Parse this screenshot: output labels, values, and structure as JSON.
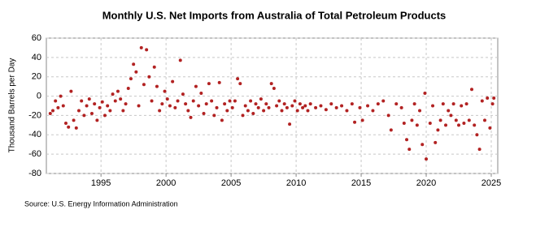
{
  "chart_data": {
    "type": "scatter",
    "title": "Monthly U.S. Net Imports from Australia of Total Petroleum Products",
    "y_label": "Thousand Barrels per Day",
    "source": "Source: U.S. Energy Information Administration",
    "color": "#b22222",
    "grid": true,
    "xlim": [
      1990.8,
      2025.5
    ],
    "xticks": [
      1995,
      2000,
      2005,
      2010,
      2015,
      2020,
      2025
    ],
    "ylim": [
      -80,
      60
    ],
    "yticks": [
      -80,
      -60,
      -40,
      -20,
      0,
      20,
      40,
      60
    ],
    "x": [
      1991.1,
      1991.3,
      1991.5,
      1991.7,
      1991.9,
      1992.1,
      1992.3,
      1992.5,
      1992.7,
      1992.9,
      1993.1,
      1993.3,
      1993.5,
      1993.7,
      1993.9,
      1994.1,
      1994.3,
      1994.5,
      1994.7,
      1994.9,
      1995.1,
      1995.3,
      1995.5,
      1995.7,
      1995.9,
      1996.1,
      1996.3,
      1996.5,
      1996.7,
      1996.9,
      1997.1,
      1997.3,
      1997.5,
      1997.7,
      1997.9,
      1998.1,
      1998.3,
      1998.5,
      1998.7,
      1998.9,
      1999.1,
      1999.3,
      1999.5,
      1999.7,
      1999.9,
      2000.1,
      2000.3,
      2000.5,
      2000.7,
      2000.9,
      2001.1,
      2001.3,
      2001.5,
      2001.7,
      2001.9,
      2002.1,
      2002.3,
      2002.5,
      2002.7,
      2002.9,
      2003.1,
      2003.3,
      2003.5,
      2003.7,
      2003.9,
      2004.1,
      2004.3,
      2004.5,
      2004.7,
      2004.9,
      2005.1,
      2005.3,
      2005.5,
      2005.7,
      2005.9,
      2006.1,
      2006.3,
      2006.5,
      2006.7,
      2006.9,
      2007.1,
      2007.3,
      2007.5,
      2007.7,
      2007.9,
      2008.1,
      2008.3,
      2008.5,
      2008.7,
      2008.9,
      2009.1,
      2009.3,
      2009.5,
      2009.7,
      2009.9,
      2010.1,
      2010.3,
      2010.5,
      2010.7,
      2010.9,
      2011.1,
      2011.5,
      2011.9,
      2012.3,
      2012.7,
      2013.1,
      2013.5,
      2013.9,
      2014.3,
      2014.5,
      2014.9,
      2015.1,
      2015.5,
      2015.9,
      2016.3,
      2016.7,
      2017.1,
      2017.3,
      2017.7,
      2018.1,
      2018.3,
      2018.5,
      2018.7,
      2018.9,
      2019.1,
      2019.3,
      2019.5,
      2019.7,
      2019.9,
      2020.0,
      2020.3,
      2020.5,
      2020.7,
      2020.9,
      2021.1,
      2021.3,
      2021.5,
      2021.7,
      2021.9,
      2022.1,
      2022.3,
      2022.5,
      2022.7,
      2022.9,
      2023.1,
      2023.3,
      2023.5,
      2023.7,
      2023.9,
      2024.1,
      2024.3,
      2024.5,
      2024.7,
      2024.9,
      2025.1,
      2025.2
    ],
    "values": [
      -18,
      -15,
      -5,
      -12,
      0,
      -10,
      -28,
      -32,
      5,
      -25,
      -33,
      -15,
      -5,
      -20,
      -10,
      -3,
      -18,
      -8,
      -25,
      -12,
      -6,
      -20,
      -10,
      -15,
      2,
      -5,
      5,
      -3,
      -15,
      -8,
      8,
      18,
      33,
      25,
      -10,
      50,
      12,
      48,
      20,
      -5,
      30,
      10,
      -15,
      -8,
      5,
      -3,
      -10,
      15,
      -12,
      -5,
      37,
      2,
      -8,
      -15,
      -22,
      -5,
      10,
      -10,
      3,
      -18,
      -8,
      13,
      -5,
      -20,
      -12,
      14,
      -25,
      -8,
      -15,
      -5,
      -12,
      -5,
      18,
      13,
      -20,
      -10,
      -15,
      -5,
      -18,
      -8,
      -12,
      -3,
      -15,
      -8,
      -12,
      13,
      8,
      -10,
      -5,
      -15,
      -8,
      -12,
      -29,
      -10,
      -5,
      -15,
      -8,
      -12,
      -10,
      -15,
      -8,
      -12,
      -10,
      -14,
      -8,
      -12,
      -10,
      -15,
      -8,
      -27,
      -12,
      -25,
      -10,
      -15,
      -8,
      -5,
      -20,
      -35,
      -8,
      -12,
      -28,
      -45,
      -55,
      -25,
      -8,
      -30,
      -15,
      -50,
      3,
      -65,
      -28,
      -10,
      -48,
      -35,
      -25,
      -8,
      -30,
      -15,
      -20,
      -8,
      -25,
      -30,
      -10,
      -28,
      -8,
      -25,
      7,
      -30,
      -40,
      -55,
      -5,
      -25,
      -2,
      -33,
      -8,
      -2
    ]
  }
}
